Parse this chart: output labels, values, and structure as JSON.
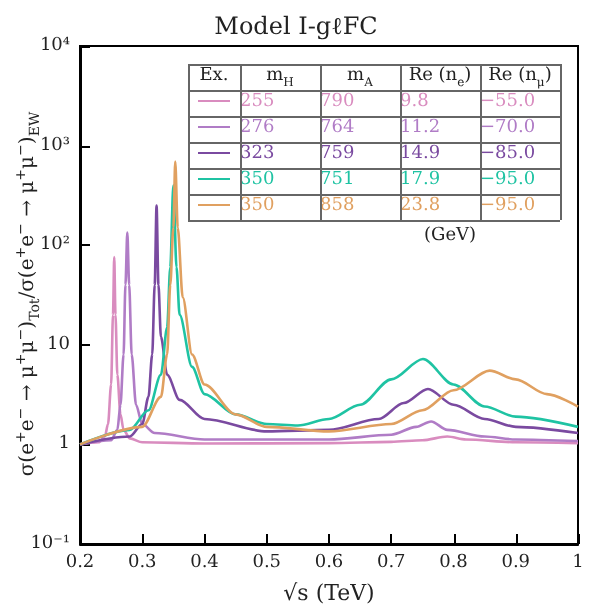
{
  "chart_data": {
    "type": "line",
    "title": "Model I-gℓFC",
    "xlabel": "√s (TeV)",
    "ylabel": "σ(e$^{+}$e$^{−}$ → μ$^{+}$μ$^{−}$)$_{Tot}$/σ(e$^{+}$e$^{−}$ → μ$^{+}$μ$^{−}$)$_{EW}$",
    "legend_title": "Ex.  m$_{H}$  m$_{A}$  Re (n$_{e}$)  Re (n$_{μ}$)",
    "annotations": [
      "(GeV)"
    ],
    "xlim": [
      0.2,
      1.0
    ],
    "xticks": [
      0.2,
      0.3,
      0.4,
      0.5,
      0.6,
      0.7,
      0.8,
      0.9,
      1.0
    ],
    "ylim": [
      0.1,
      10000
    ],
    "yticks": [
      {
        "value": 0.1,
        "label": "10⁻¹"
      },
      1,
      10,
      {
        "value": 100,
        "label": "10²"
      },
      {
        "value": 1000,
        "label": "10³"
      },
      {
        "value": 10000,
        "label": "10⁴"
      }
    ],
    "log": "y",
    "grid": false,
    "legend": "top right",
    "marker": "none",
    "line_style": "solid",
    "series": [
      {
        "name": "255  790  9.8  −55.0",
        "color": "#d98cbf",
        "x": [
          0.2,
          0.23,
          0.24,
          0.245,
          0.25,
          0.253,
          0.255,
          0.257,
          0.26,
          0.265,
          0.27,
          0.28,
          0.3,
          0.4,
          0.6,
          0.7,
          0.75,
          0.79,
          0.82,
          0.9,
          1.0
        ],
        "values": [
          1.0,
          1.05,
          1.2,
          1.6,
          4,
          20,
          76,
          20,
          5,
          2,
          1.4,
          1.15,
          1.05,
          1.02,
          1.03,
          1.06,
          1.1,
          1.2,
          1.12,
          1.05,
          1.03
        ]
      },
      {
        "name": "276  764  11.2  −70.0",
        "color": "#b07cc6",
        "x": [
          0.2,
          0.25,
          0.26,
          0.265,
          0.27,
          0.273,
          0.276,
          0.279,
          0.283,
          0.29,
          0.3,
          0.32,
          0.4,
          0.6,
          0.7,
          0.74,
          0.764,
          0.79,
          0.85,
          0.9,
          1.0
        ],
        "values": [
          1.0,
          1.1,
          1.4,
          2.5,
          8,
          40,
          134,
          40,
          8,
          2.5,
          1.6,
          1.3,
          1.12,
          1.12,
          1.25,
          1.5,
          1.7,
          1.4,
          1.2,
          1.12,
          1.08
        ]
      },
      {
        "name": "323  759  14.9  −85.0",
        "color": "#7a4aa0",
        "x": [
          0.2,
          0.28,
          0.3,
          0.31,
          0.316,
          0.32,
          0.323,
          0.326,
          0.33,
          0.34,
          0.36,
          0.4,
          0.5,
          0.6,
          0.68,
          0.72,
          0.759,
          0.8,
          0.85,
          0.9,
          1.0
        ],
        "values": [
          1.0,
          1.2,
          1.6,
          3,
          8,
          40,
          250,
          40,
          12,
          5,
          2.8,
          1.8,
          1.35,
          1.4,
          1.8,
          2.6,
          3.6,
          2.5,
          1.8,
          1.5,
          1.3
        ]
      },
      {
        "name": "350  751  17.9  −95.0",
        "color": "#1fc3a3",
        "x": [
          0.2,
          0.28,
          0.31,
          0.33,
          0.34,
          0.345,
          0.35,
          0.355,
          0.36,
          0.38,
          0.4,
          0.45,
          0.5,
          0.55,
          0.6,
          0.65,
          0.7,
          0.751,
          0.8,
          0.85,
          0.9,
          1.0
        ],
        "values": [
          1.0,
          1.4,
          2.2,
          5,
          15,
          60,
          400,
          60,
          20,
          6,
          3.2,
          2,
          1.6,
          1.55,
          1.8,
          2.5,
          4.5,
          7.2,
          4,
          2.4,
          1.9,
          1.5
        ]
      },
      {
        "name": "350  858  23.8  −95.0",
        "color": "#e0a060",
        "x": [
          0.2,
          0.3,
          0.33,
          0.34,
          0.345,
          0.35,
          0.353,
          0.357,
          0.365,
          0.38,
          0.4,
          0.45,
          0.5,
          0.6,
          0.7,
          0.75,
          0.8,
          0.858,
          0.9,
          0.95,
          1.0
        ],
        "values": [
          1.0,
          1.5,
          3,
          8,
          40,
          150,
          690,
          150,
          30,
          8,
          4,
          2,
          1.5,
          1.35,
          1.6,
          2.2,
          3.5,
          5.5,
          4.5,
          3.2,
          2.4
        ]
      }
    ]
  }
}
